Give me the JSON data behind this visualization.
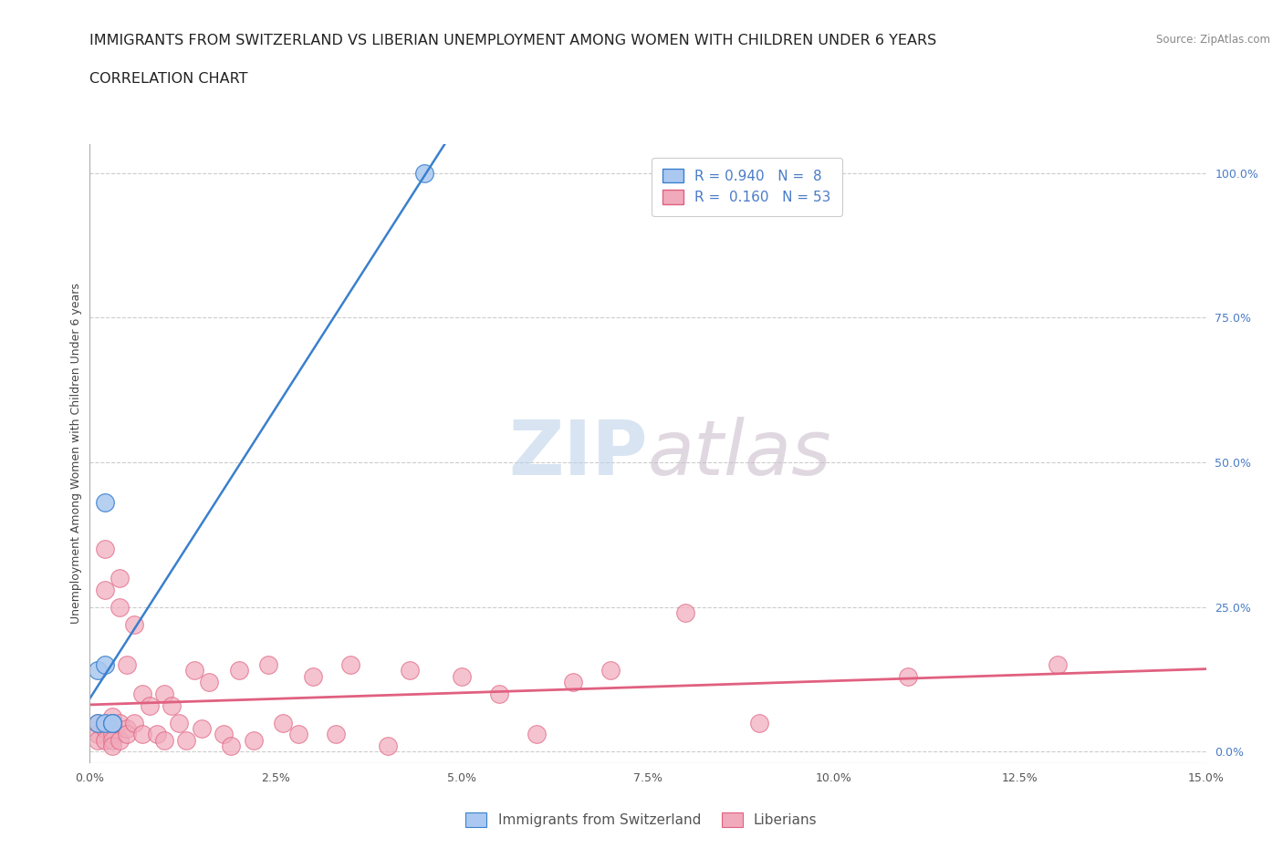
{
  "title_line1": "IMMIGRANTS FROM SWITZERLAND VS LIBERIAN UNEMPLOYMENT AMONG WOMEN WITH CHILDREN UNDER 6 YEARS",
  "title_line2": "CORRELATION CHART",
  "source_text": "Source: ZipAtlas.com",
  "ylabel": "Unemployment Among Women with Children Under 6 years",
  "watermark": "ZIPatlas",
  "xlim": [
    0.0,
    0.15
  ],
  "ylim": [
    -0.02,
    1.05
  ],
  "right_yticks": [
    0.0,
    0.25,
    0.5,
    0.75,
    1.0
  ],
  "right_yticklabels": [
    "0.0%",
    "25.0%",
    "50.0%",
    "75.0%",
    "100.0%"
  ],
  "xticks": [
    0.0,
    0.025,
    0.05,
    0.075,
    0.1,
    0.125,
    0.15
  ],
  "xticklabels": [
    "0.0%",
    "2.5%",
    "5.0%",
    "7.5%",
    "10.0%",
    "12.5%",
    "15.0%"
  ],
  "legend_R1": "0.940",
  "legend_N1": "8",
  "legend_R2": "0.160",
  "legend_N2": "53",
  "legend_label1": "Immigrants from Switzerland",
  "legend_label2": "Liberians",
  "color_swiss": "#aac8f0",
  "color_liberian": "#f0aabb",
  "color_swiss_line": "#3a80cc",
  "color_liberian_line": "#e06080",
  "color_text_blue": "#4a7cc7",
  "color_grid": "#cccccc",
  "background_color": "#ffffff",
  "swiss_x": [
    0.001,
    0.001,
    0.002,
    0.002,
    0.002,
    0.003,
    0.003,
    0.045
  ],
  "swiss_y": [
    0.05,
    0.14,
    0.05,
    0.43,
    0.15,
    0.05,
    0.05,
    1.0
  ],
  "liberian_x": [
    0.001,
    0.001,
    0.001,
    0.002,
    0.002,
    0.002,
    0.002,
    0.003,
    0.003,
    0.003,
    0.003,
    0.004,
    0.004,
    0.004,
    0.004,
    0.005,
    0.005,
    0.005,
    0.006,
    0.006,
    0.007,
    0.007,
    0.008,
    0.009,
    0.01,
    0.01,
    0.011,
    0.012,
    0.013,
    0.014,
    0.015,
    0.016,
    0.018,
    0.019,
    0.02,
    0.022,
    0.024,
    0.026,
    0.028,
    0.03,
    0.033,
    0.035,
    0.04,
    0.043,
    0.05,
    0.055,
    0.06,
    0.065,
    0.07,
    0.08,
    0.09,
    0.11,
    0.13
  ],
  "liberian_y": [
    0.03,
    0.05,
    0.02,
    0.28,
    0.35,
    0.04,
    0.02,
    0.06,
    0.03,
    0.02,
    0.01,
    0.25,
    0.3,
    0.05,
    0.02,
    0.15,
    0.04,
    0.03,
    0.22,
    0.05,
    0.1,
    0.03,
    0.08,
    0.03,
    0.1,
    0.02,
    0.08,
    0.05,
    0.02,
    0.14,
    0.04,
    0.12,
    0.03,
    0.01,
    0.14,
    0.02,
    0.15,
    0.05,
    0.03,
    0.13,
    0.03,
    0.15,
    0.01,
    0.14,
    0.13,
    0.1,
    0.03,
    0.12,
    0.14,
    0.24,
    0.05,
    0.13,
    0.15
  ],
  "title_fontsize": 11.5,
  "subtitle_fontsize": 11.5,
  "axis_label_fontsize": 9,
  "tick_fontsize": 9,
  "legend_fontsize": 11,
  "watermark_fontsize": 60
}
